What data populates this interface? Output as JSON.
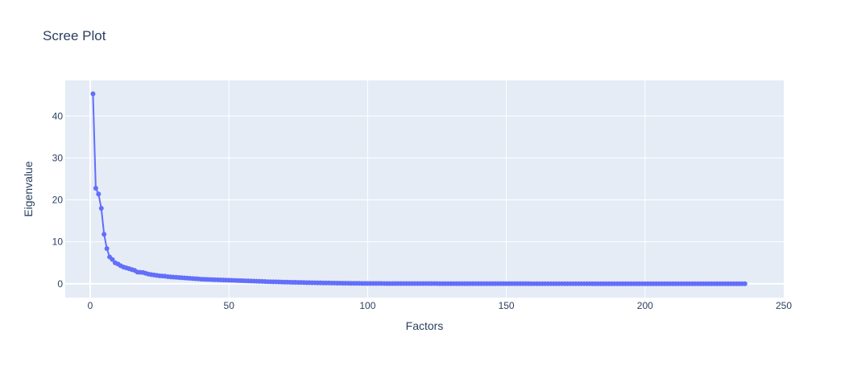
{
  "chart_data": {
    "type": "line",
    "title": "Scree Plot",
    "xlabel": "Factors",
    "ylabel": "Eigenvalue",
    "xlim": [
      -9,
      250
    ],
    "ylim": [
      -3.3,
      48.5
    ],
    "xticks": [
      0,
      50,
      100,
      150,
      200,
      250
    ],
    "yticks": [
      0,
      10,
      20,
      30,
      40
    ],
    "grid": true,
    "legend": "none",
    "colors": {
      "line": "#636efa",
      "plot_bg": "#e5ecf6",
      "grid": "#ffffff",
      "text": "#2a3f5f"
    },
    "series": [
      {
        "x": [
          1,
          2,
          3,
          4,
          5,
          6,
          7,
          8,
          9,
          10,
          11,
          12,
          13,
          14,
          15,
          16,
          17,
          18,
          19,
          20,
          21,
          22,
          23,
          24,
          25,
          26,
          27,
          28,
          29,
          30,
          32,
          34,
          36,
          38,
          40,
          42,
          44,
          46,
          48,
          50,
          52,
          54,
          56,
          58,
          60,
          62,
          64,
          66,
          68,
          70,
          72,
          74,
          76,
          78,
          80,
          82,
          84,
          86,
          88,
          90,
          92,
          94,
          96,
          98,
          100,
          110,
          120,
          130,
          140,
          150,
          160,
          170,
          180,
          190,
          200,
          210,
          220,
          230,
          236
        ],
        "y": [
          45.3,
          22.8,
          21.4,
          18.0,
          11.8,
          8.4,
          6.4,
          5.8,
          5.0,
          4.7,
          4.3,
          4.0,
          3.8,
          3.6,
          3.4,
          3.2,
          2.8,
          2.75,
          2.7,
          2.5,
          2.3,
          2.2,
          2.1,
          2.0,
          1.9,
          1.85,
          1.8,
          1.7,
          1.65,
          1.6,
          1.5,
          1.4,
          1.3,
          1.2,
          1.1,
          1.05,
          1.0,
          0.95,
          0.9,
          0.85,
          0.8,
          0.75,
          0.7,
          0.65,
          0.6,
          0.55,
          0.5,
          0.47,
          0.44,
          0.4,
          0.37,
          0.34,
          0.31,
          0.28,
          0.25,
          0.23,
          0.21,
          0.19,
          0.17,
          0.15,
          0.13,
          0.11,
          0.1,
          0.09,
          0.08,
          0.06,
          0.05,
          0.04,
          0.03,
          0.03,
          0.02,
          0.02,
          0.02,
          0.01,
          0.01,
          0.01,
          0.01,
          0.01,
          0.01
        ]
      }
    ]
  }
}
